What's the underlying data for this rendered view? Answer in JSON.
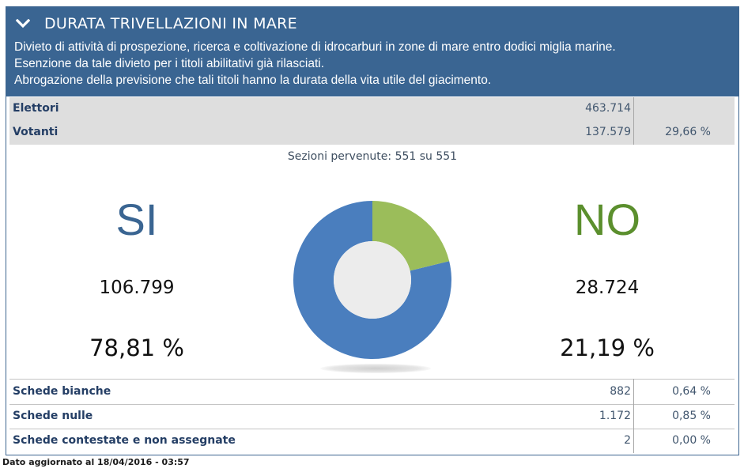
{
  "header": {
    "title": "DURATA TRIVELLAZIONI IN MARE",
    "lines": [
      "Divieto di attività di prospezione, ricerca e coltivazione di idrocarburi in zone di mare entro dodici miglia marine.",
      "Esenzione da tale divieto per i titoli abilitativi già rilasciati.",
      "Abrogazione della previsione che tali titoli hanno la durata della vita utile del giacimento."
    ]
  },
  "turnout": {
    "elettori_label": "Elettori",
    "elettori_value": "463.714",
    "votanti_label": "Votanti",
    "votanti_value": "137.579",
    "votanti_pct": "29,66 %"
  },
  "sezioni": "Sezioni pervenute: 551 su 551",
  "result": {
    "si": {
      "label": "SI",
      "votes": "106.799",
      "pct": "78,81 %",
      "share": 0.7881,
      "color": "#4a7ebe"
    },
    "no": {
      "label": "NO",
      "votes": "28.724",
      "pct": "21,19 %",
      "share": 0.2119,
      "color": "#9bbd5a"
    }
  },
  "schede": [
    {
      "label": "Schede bianche",
      "value": "882",
      "pct": "0,64 %"
    },
    {
      "label": "Schede nulle",
      "value": "1.172",
      "pct": "0,85 %"
    },
    {
      "label": "Schede contestate e non assegnate",
      "value": "2",
      "pct": "0,00 %"
    }
  ],
  "footer": "Dato aggiornato al 18/04/2016 - 03:57"
}
